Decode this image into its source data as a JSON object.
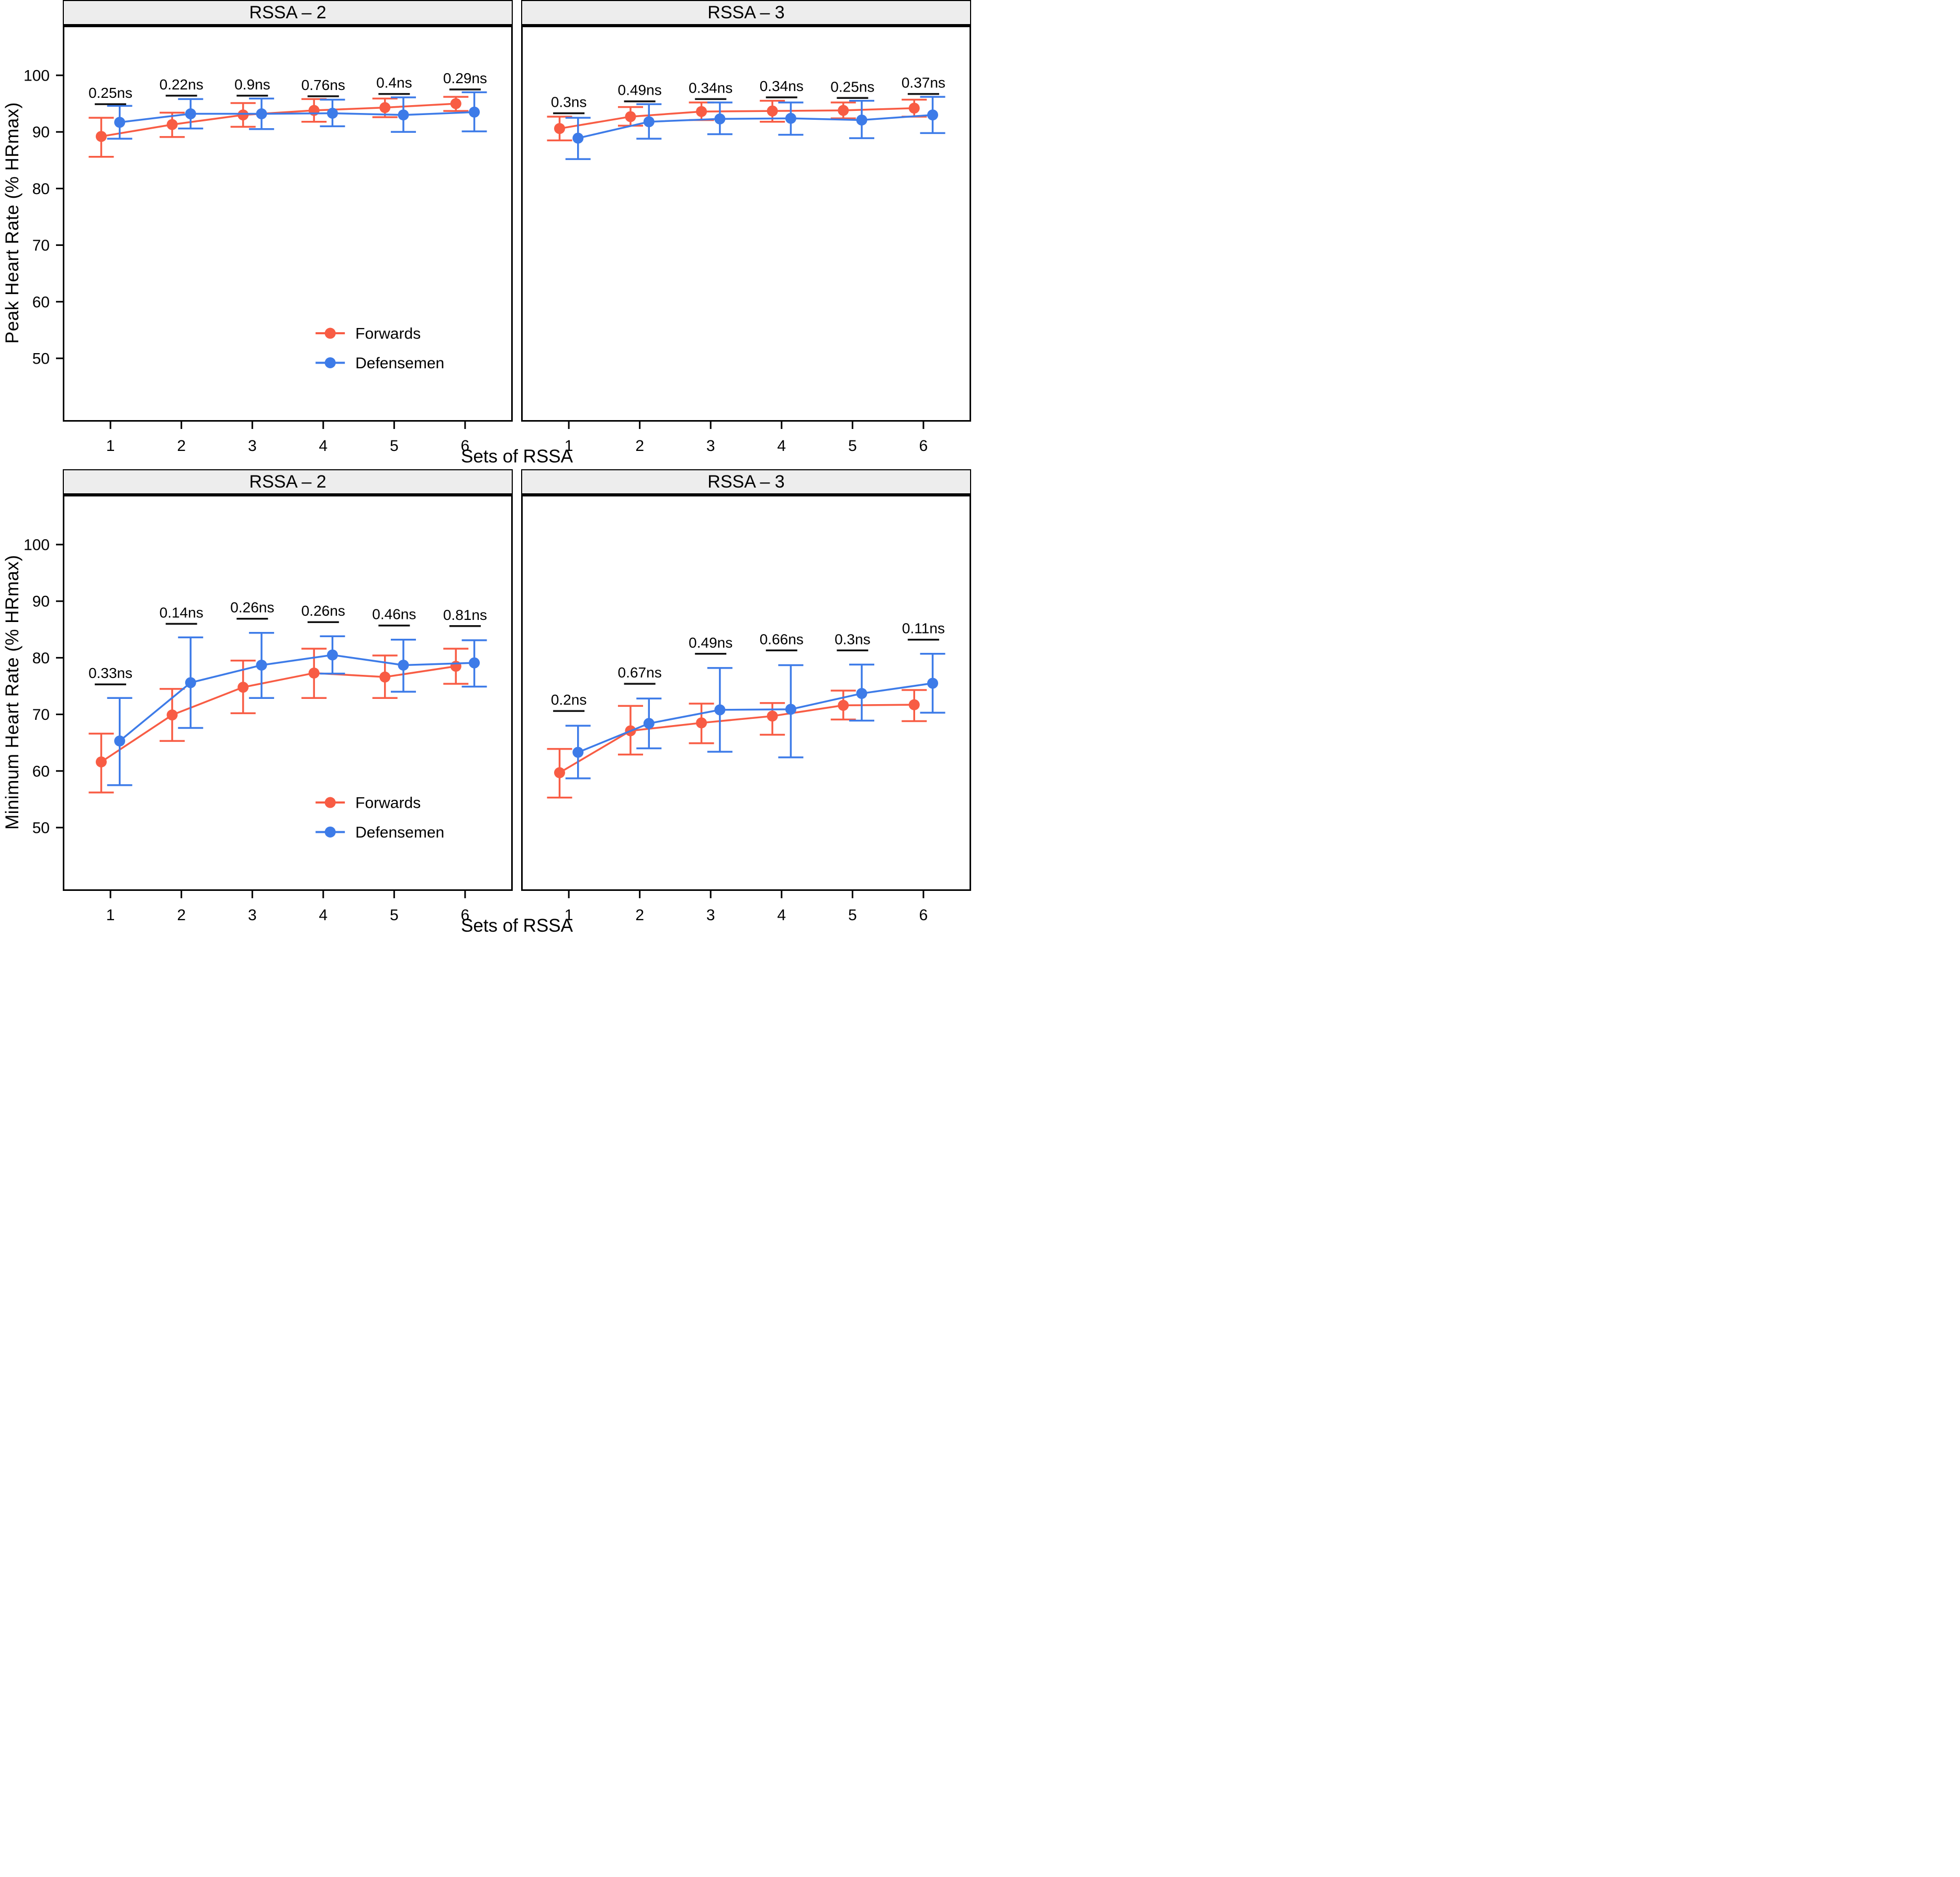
{
  "rows": [
    {
      "y_label": "Peak Heart Rate (% HRmax)",
      "x_label": "Sets of RSSA",
      "y_ticks": [
        100,
        90,
        80,
        70,
        60,
        50
      ],
      "x_ticks": [
        1,
        2,
        3,
        4,
        5,
        6
      ]
    },
    {
      "y_label": "Minimum Heart Rate (% HRmax)",
      "x_label": "Sets of RSSA",
      "y_ticks": [
        100,
        90,
        80,
        70,
        60,
        50
      ],
      "x_ticks": [
        1,
        2,
        3,
        4,
        5,
        6
      ]
    }
  ],
  "legend": {
    "items": [
      {
        "label": "Forwards",
        "color_key": "forwards"
      },
      {
        "label": "Defensemen",
        "color_key": "defensemen"
      }
    ]
  },
  "colors": {
    "forwards": "#F85C44",
    "defensemen": "#3D7BE8",
    "annotation": "#111111",
    "strip_bg": "#EDEDED",
    "border": "#000000"
  },
  "axes": {
    "y_domain": [
      39,
      108.5
    ],
    "x_domain": [
      0.35,
      6.65
    ],
    "dodge": 0.13,
    "grid": "off",
    "legend_position": "inside-bottom-left-panel"
  },
  "chart_data": [
    {
      "type": "line",
      "row": 0,
      "col": 0,
      "facet_title": "RSSA – 2",
      "measure": "Peak Heart Rate (% HRmax)",
      "x": [
        1,
        2,
        3,
        4,
        5,
        6
      ],
      "series": [
        {
          "name": "Forwards",
          "color_key": "forwards",
          "values": [
            89.2,
            91.3,
            93.0,
            93.8,
            94.3,
            95.0
          ],
          "err_lo": [
            85.6,
            89.1,
            90.9,
            91.8,
            92.6,
            93.7
          ],
          "err_hi": [
            92.5,
            93.4,
            95.1,
            95.8,
            95.9,
            96.2
          ]
        },
        {
          "name": "Defensemen",
          "color_key": "defensemen",
          "values": [
            91.7,
            93.2,
            93.2,
            93.3,
            93.0,
            93.5
          ],
          "err_lo": [
            88.8,
            90.6,
            90.5,
            91.0,
            90.0,
            90.1
          ],
          "err_hi": [
            94.6,
            95.8,
            95.9,
            95.7,
            96.1,
            97.0
          ]
        }
      ],
      "annotations": [
        {
          "label": "0.25ns",
          "x": 1,
          "line_y": 94.9
        },
        {
          "label": "0.22ns",
          "x": 2,
          "line_y": 96.4
        },
        {
          "label": "0.9ns",
          "x": 3,
          "line_y": 96.4
        },
        {
          "label": "0.76ns",
          "x": 4,
          "line_y": 96.3
        },
        {
          "label": "0.4ns",
          "x": 5,
          "line_y": 96.7
        },
        {
          "label": "0.29ns",
          "x": 6,
          "line_y": 97.5
        }
      ],
      "show_legend": true
    },
    {
      "type": "line",
      "row": 0,
      "col": 1,
      "facet_title": "RSSA – 3",
      "measure": "Peak Heart Rate (% HRmax)",
      "x": [
        1,
        2,
        3,
        4,
        5,
        6
      ],
      "series": [
        {
          "name": "Forwards",
          "color_key": "forwards",
          "values": [
            90.6,
            92.7,
            93.6,
            93.7,
            93.8,
            94.2
          ],
          "err_lo": [
            88.5,
            91.1,
            92.1,
            91.8,
            92.4,
            92.7
          ],
          "err_hi": [
            92.7,
            94.4,
            95.2,
            95.5,
            95.2,
            95.7
          ]
        },
        {
          "name": "Defensemen",
          "color_key": "defensemen",
          "values": [
            88.9,
            91.8,
            92.3,
            92.4,
            92.1,
            93.0
          ],
          "err_lo": [
            85.2,
            88.8,
            89.6,
            89.5,
            88.9,
            89.8
          ],
          "err_hi": [
            92.5,
            94.9,
            95.2,
            95.2,
            95.5,
            96.2
          ]
        }
      ],
      "annotations": [
        {
          "label": "0.3ns",
          "x": 1,
          "line_y": 93.3
        },
        {
          "label": "0.49ns",
          "x": 2,
          "line_y": 95.4
        },
        {
          "label": "0.34ns",
          "x": 3,
          "line_y": 95.8
        },
        {
          "label": "0.34ns",
          "x": 4,
          "line_y": 96.1
        },
        {
          "label": "0.25ns",
          "x": 5,
          "line_y": 96.0
        },
        {
          "label": "0.37ns",
          "x": 6,
          "line_y": 96.7
        }
      ],
      "show_legend": false
    },
    {
      "type": "line",
      "row": 1,
      "col": 0,
      "facet_title": "RSSA – 2",
      "measure": "Minimum Heart Rate (% HRmax)",
      "x": [
        1,
        2,
        3,
        4,
        5,
        6
      ],
      "series": [
        {
          "name": "Forwards",
          "color_key": "forwards",
          "values": [
            61.6,
            69.9,
            74.8,
            77.3,
            76.6,
            78.5
          ],
          "err_lo": [
            56.2,
            65.3,
            70.2,
            72.9,
            72.9,
            75.4
          ],
          "err_hi": [
            66.6,
            74.5,
            79.5,
            81.6,
            80.4,
            81.6
          ]
        },
        {
          "name": "Defensemen",
          "color_key": "defensemen",
          "values": [
            65.3,
            75.6,
            78.7,
            80.5,
            78.7,
            79.1
          ],
          "err_lo": [
            57.5,
            67.6,
            72.9,
            77.2,
            74.0,
            74.9
          ],
          "err_hi": [
            72.9,
            83.6,
            84.4,
            83.8,
            83.2,
            83.1
          ]
        }
      ],
      "annotations": [
        {
          "label": "0.33ns",
          "x": 1,
          "line_y": 75.3
        },
        {
          "label": "0.14ns",
          "x": 2,
          "line_y": 86.0
        },
        {
          "label": "0.26ns",
          "x": 3,
          "line_y": 86.9
        },
        {
          "label": "0.26ns",
          "x": 4,
          "line_y": 86.3
        },
        {
          "label": "0.46ns",
          "x": 5,
          "line_y": 85.7
        },
        {
          "label": "0.81ns",
          "x": 6,
          "line_y": 85.6
        }
      ],
      "show_legend": true
    },
    {
      "type": "line",
      "row": 1,
      "col": 1,
      "facet_title": "RSSA – 3",
      "measure": "Minimum Heart Rate (% HRmax)",
      "x": [
        1,
        2,
        3,
        4,
        5,
        6
      ],
      "series": [
        {
          "name": "Forwards",
          "color_key": "forwards",
          "values": [
            59.7,
            67.1,
            68.5,
            69.7,
            71.6,
            71.7
          ],
          "err_lo": [
            55.3,
            62.9,
            64.9,
            66.4,
            69.1,
            68.8
          ],
          "err_hi": [
            63.9,
            71.5,
            71.9,
            72.0,
            74.2,
            74.3
          ]
        },
        {
          "name": "Defensemen",
          "color_key": "defensemen",
          "values": [
            63.3,
            68.4,
            70.8,
            70.9,
            73.7,
            75.5
          ],
          "err_lo": [
            58.7,
            64.0,
            63.4,
            62.4,
            68.9,
            70.3
          ],
          "err_hi": [
            68.0,
            72.8,
            78.2,
            78.7,
            78.8,
            80.7
          ]
        }
      ],
      "annotations": [
        {
          "label": "0.2ns",
          "x": 1,
          "line_y": 70.6
        },
        {
          "label": "0.67ns",
          "x": 2,
          "line_y": 75.4
        },
        {
          "label": "0.49ns",
          "x": 3,
          "line_y": 80.7
        },
        {
          "label": "0.66ns",
          "x": 4,
          "line_y": 81.3
        },
        {
          "label": "0.3ns",
          "x": 5,
          "line_y": 81.3
        },
        {
          "label": "0.11ns",
          "x": 6,
          "line_y": 83.2
        }
      ],
      "show_legend": false
    }
  ]
}
